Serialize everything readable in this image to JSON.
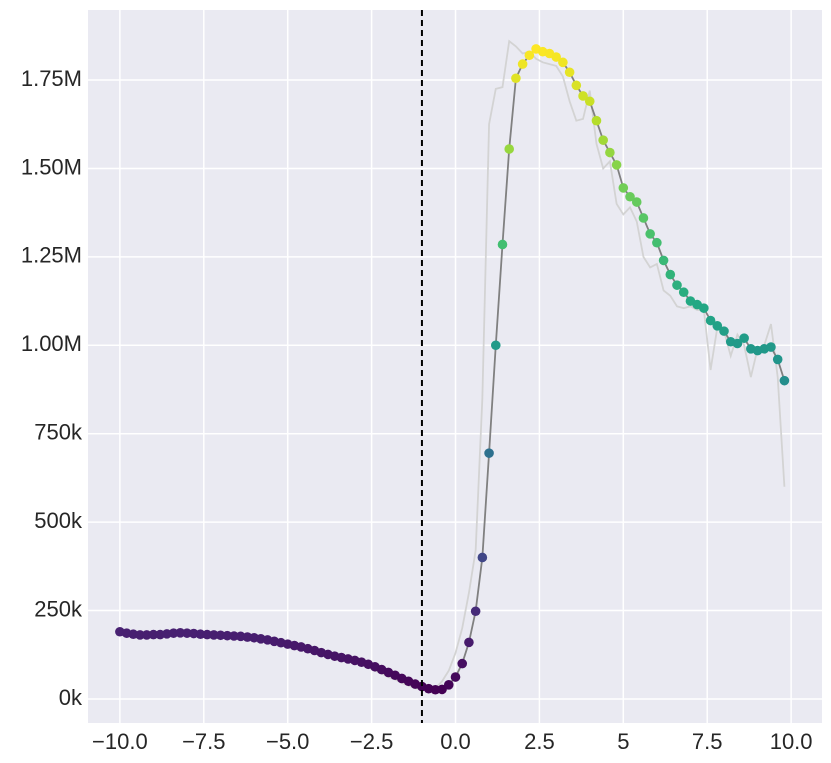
{
  "chart_data": {
    "type": "line",
    "x": [
      -10,
      -9.8,
      -9.6,
      -9.4,
      -9.2,
      -9,
      -8.8,
      -8.6,
      -8.4,
      -8.2,
      -8,
      -7.8,
      -7.6,
      -7.4,
      -7.2,
      -7,
      -6.8,
      -6.6,
      -6.4,
      -6.2,
      -6,
      -5.8,
      -5.6,
      -5.4,
      -5.2,
      -5,
      -4.8,
      -4.6,
      -4.4,
      -4.2,
      -4,
      -3.8,
      -3.6,
      -3.4,
      -3.2,
      -3,
      -2.8,
      -2.6,
      -2.4,
      -2.2,
      -2,
      -1.8,
      -1.6,
      -1.4,
      -1.2,
      -1,
      -0.8,
      -0.6,
      -0.4,
      -0.2,
      0,
      0.2,
      0.4,
      0.6,
      0.8,
      1,
      1.2,
      1.4,
      1.6,
      1.8,
      2,
      2.2,
      2.4,
      2.6,
      2.8,
      3,
      3.2,
      3.4,
      3.6,
      3.8,
      4,
      4.2,
      4.4,
      4.6,
      4.8,
      5,
      5.2,
      5.4,
      5.6,
      5.8,
      6,
      6.2,
      6.4,
      6.6,
      6.8,
      7,
      7.2,
      7.4,
      7.6,
      7.8,
      8,
      8.2,
      8.4,
      8.6,
      8.8,
      9,
      9.2,
      9.4,
      9.6,
      9.8
    ],
    "series": [
      {
        "color": "#d3d3d3",
        "markers": false,
        "values": [
          188000,
          185000,
          182000,
          180000,
          180000,
          181000,
          181000,
          183000,
          185000,
          186000,
          185000,
          184000,
          182000,
          181000,
          180000,
          179000,
          178000,
          177000,
          176000,
          174000,
          171000,
          168000,
          165000,
          161000,
          157000,
          153000,
          149000,
          145000,
          140000,
          135000,
          129000,
          123000,
          118000,
          113000,
          109000,
          105000,
          100000,
          90000,
          80000,
          72000,
          62000,
          55000,
          45000,
          38000,
          30000,
          28000,
          25000,
          30000,
          50000,
          80000,
          130000,
          200000,
          300000,
          420000,
          850000,
          1625000,
          1725000,
          1730000,
          1860000,
          1845000,
          1825000,
          1830000,
          1810000,
          1800000,
          1795000,
          1790000,
          1760000,
          1690000,
          1635000,
          1640000,
          1720000,
          1570000,
          1500000,
          1520000,
          1400000,
          1370000,
          1390000,
          1350000,
          1250000,
          1220000,
          1230000,
          1155000,
          1140000,
          1110000,
          1105000,
          1110000,
          1100000,
          1100000,
          930000,
          1050000,
          1040000,
          970000,
          1030000,
          1000000,
          910000,
          990000,
          1000000,
          1060000,
          910000,
          600000
        ]
      },
      {
        "color": "#808080",
        "markers": true,
        "colormap": "viridis",
        "values": [
          190000,
          186000,
          183000,
          181000,
          181000,
          182000,
          182000,
          184000,
          186000,
          187000,
          186000,
          185000,
          183000,
          182000,
          181000,
          180000,
          179000,
          178000,
          177000,
          175000,
          173000,
          170000,
          167000,
          163000,
          159000,
          155000,
          151000,
          147000,
          142000,
          137000,
          131000,
          126000,
          121000,
          117000,
          113000,
          109000,
          104000,
          98000,
          91000,
          83000,
          75000,
          67000,
          58000,
          50000,
          42000,
          35000,
          29000,
          26000,
          27000,
          40000,
          62000,
          100000,
          160000,
          248000,
          400000,
          695000,
          1000000,
          1285000,
          1555000,
          1755000,
          1795000,
          1820000,
          1838000,
          1830000,
          1825000,
          1815000,
          1800000,
          1772000,
          1735000,
          1705000,
          1690000,
          1635000,
          1580000,
          1545000,
          1510000,
          1445000,
          1420000,
          1405000,
          1360000,
          1315000,
          1290000,
          1240000,
          1200000,
          1170000,
          1150000,
          1125000,
          1115000,
          1105000,
          1070000,
          1055000,
          1040000,
          1010000,
          1005000,
          1020000,
          990000,
          985000,
          990000,
          995000,
          960000,
          900000
        ]
      }
    ],
    "vlines": [
      {
        "x": -1,
        "color": "#000000",
        "dashed": true
      }
    ],
    "xlim": [
      -10.95,
      10.92
    ],
    "ylim": [
      -68000,
      1948000
    ],
    "xticks": [
      {
        "value": -10,
        "label": "−10.0"
      },
      {
        "value": -7.5,
        "label": "−7.5"
      },
      {
        "value": -5,
        "label": "−5.0"
      },
      {
        "value": -2.5,
        "label": "−2.5"
      },
      {
        "value": 0,
        "label": "0.0"
      },
      2.5,
      5,
      7.5,
      {
        "value": 10,
        "label": "10.0"
      }
    ],
    "yticks": [
      {
        "value": 0,
        "label": "0k"
      },
      {
        "value": 250000,
        "label": "250k"
      },
      {
        "value": 500000,
        "label": "500k"
      },
      {
        "value": 750000,
        "label": "750k"
      },
      {
        "value": 1000000,
        "label": "1.00M"
      },
      {
        "value": 1250000,
        "label": "1.25M"
      },
      {
        "value": 1500000,
        "label": "1.50M"
      },
      {
        "value": 1750000,
        "label": "1.75M"
      }
    ],
    "grid": true
  }
}
